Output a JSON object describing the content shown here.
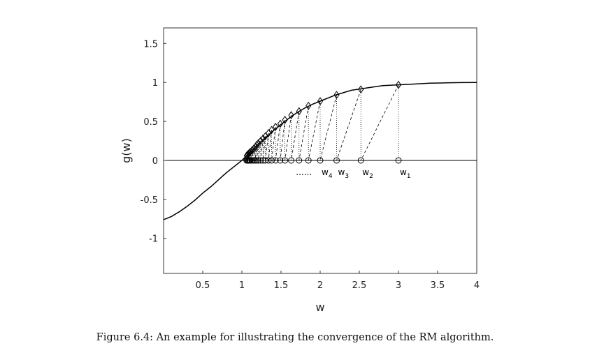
{
  "caption": "Figure 6.4: An example for illustrating the convergence of the RM algorithm.",
  "chart_data": {
    "type": "line",
    "xlabel": "w",
    "ylabel": "g(w)",
    "xlim": [
      0,
      4
    ],
    "ylim": [
      -1.45,
      1.7
    ],
    "xticks": [
      "0.5",
      "1",
      "1.5",
      "2",
      "2.5",
      "3",
      "3.5",
      "4"
    ],
    "yticks": [
      "-1",
      "-0.5",
      "0",
      "0.5",
      "1",
      "1.5"
    ],
    "grid": false,
    "legend": "none",
    "curve_x": [
      0.0,
      0.1,
      0.2,
      0.3,
      0.4,
      0.5,
      0.6,
      0.7,
      0.8,
      0.9,
      1.0,
      1.1,
      1.2,
      1.3,
      1.4,
      1.5,
      1.6,
      1.7,
      1.8,
      1.9,
      2.0,
      2.2,
      2.4,
      2.6,
      2.8,
      3.0,
      3.2,
      3.4,
      3.6,
      3.8,
      4.0
    ],
    "curve_y": [
      -0.76,
      -0.72,
      -0.66,
      -0.59,
      -0.51,
      -0.42,
      -0.34,
      -0.25,
      -0.16,
      -0.08,
      0.0,
      0.1,
      0.2,
      0.29,
      0.38,
      0.46,
      0.54,
      0.61,
      0.67,
      0.72,
      0.76,
      0.84,
      0.9,
      0.93,
      0.96,
      0.97,
      0.98,
      0.99,
      0.995,
      0.998,
      1.0
    ],
    "iterates_w": [
      3.0,
      2.52,
      2.21,
      2.0,
      1.85,
      1.73,
      1.63,
      1.55,
      1.49,
      1.43,
      1.38,
      1.34,
      1.3,
      1.27,
      1.24,
      1.21,
      1.19,
      1.17,
      1.15,
      1.13,
      1.11,
      1.1,
      1.09,
      1.08,
      1.07,
      1.06
    ],
    "iterates_g": [
      0.97,
      0.91,
      0.84,
      0.76,
      0.7,
      0.63,
      0.58,
      0.52,
      0.47,
      0.43,
      0.39,
      0.35,
      0.31,
      0.28,
      0.25,
      0.22,
      0.2,
      0.17,
      0.15,
      0.13,
      0.11,
      0.1,
      0.09,
      0.08,
      0.07,
      0.06
    ],
    "annotations": [
      {
        "base": "w",
        "sub": "1",
        "x": 3.0
      },
      {
        "base": "w",
        "sub": "2",
        "x": 2.52
      },
      {
        "base": "w",
        "sub": "3",
        "x": 2.21
      },
      {
        "base": "w",
        "sub": "4",
        "x": 2.0
      }
    ],
    "ellipsis": "......"
  }
}
